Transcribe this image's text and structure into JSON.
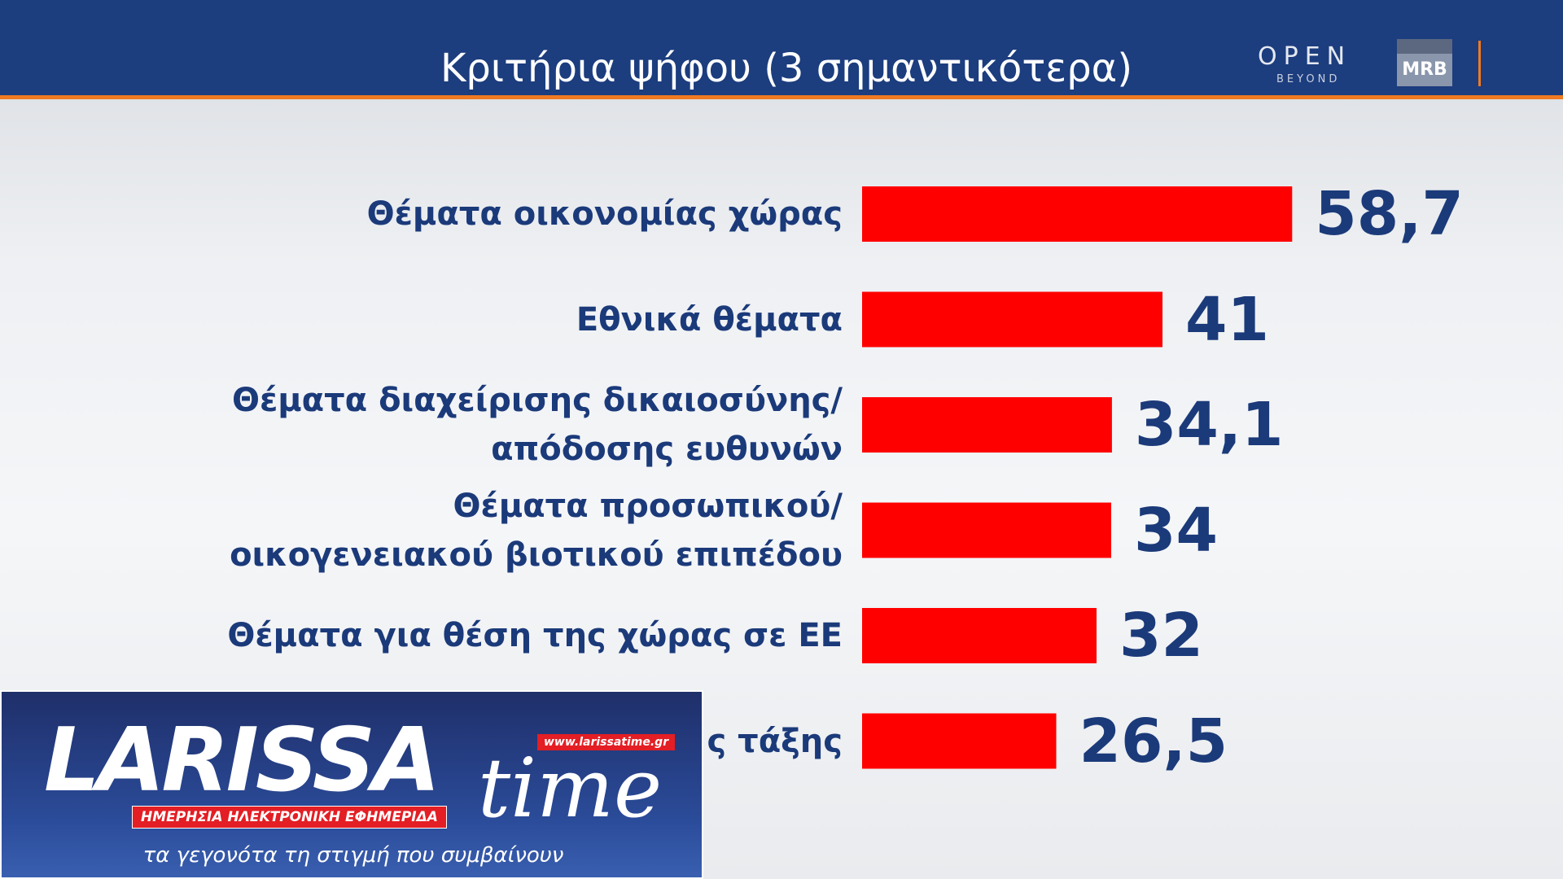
{
  "header": {
    "logo_open": "OPEN",
    "logo_beyond": "BEYOND",
    "logo_mrb": "MRB"
  },
  "chart_data": {
    "type": "bar",
    "orientation": "horizontal",
    "title": "Κριτήρια ψήφου (3 σημαντικότερα)",
    "categories": [
      "Θέματα οικονομίας χώρας",
      "Εθνικά θέματα",
      "Θέματα διαχείρισης δικαιοσύνης/\nαπόδοσης ευθυνών",
      "Θέματα προσωπικού/\nοικογενειακού βιοτικού επιπέδου",
      "Θέματα για θέση της χώρας σε ΕΕ",
      "ς τάξης"
    ],
    "values": [
      58.7,
      41,
      34.1,
      34,
      32,
      26.5
    ],
    "value_labels": [
      "58,7",
      "41",
      "34,1",
      "34",
      "32",
      "26,5"
    ],
    "color": "#ff0000"
  },
  "overlay": {
    "brand": "LARISSA",
    "brand2": "time",
    "url": "www.larissatime.gr",
    "tagline": "ΗΜΕΡΗΣΙΑ ΗΛΕΚΤΡΟΝΙΚΗ ΕΦΗΜΕΡΙΔΑ",
    "slogan": "τα γεγονότα τη στιγμή που συμβαίνουν"
  }
}
